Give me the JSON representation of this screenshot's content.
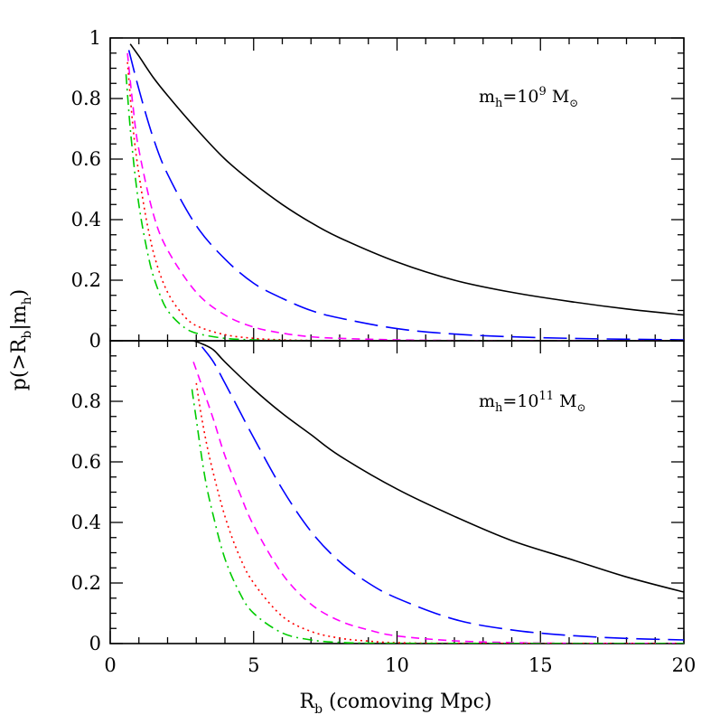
{
  "chart_data": [
    {
      "type": "line",
      "panel": "top",
      "annotation": {
        "prefix": "m",
        "sub": "h",
        "eq": "=10",
        "exp": "9",
        "unit": " M",
        "sun": "⊙"
      },
      "xlim": [
        0,
        20
      ],
      "ylim": [
        0,
        1
      ],
      "xticks": [
        "0",
        "5",
        "10",
        "15",
        "20"
      ],
      "yticks": [
        "0",
        "0.2",
        "0.4",
        "0.6",
        "0.8",
        "1"
      ],
      "ylabel": {
        "main": "p(>R",
        "sub1": "b",
        "mid": "|m",
        "sub2": "h",
        "end": ")"
      },
      "xlabel": {
        "main": "R",
        "sub": "b",
        "rest": " (comoving Mpc)"
      },
      "series": [
        {
          "color": "#000000",
          "dash": "solid",
          "x": [
            0.7,
            1,
            1.5,
            2,
            3,
            4,
            5,
            6,
            7,
            8,
            10,
            12,
            14,
            16,
            18,
            20
          ],
          "y": [
            0.98,
            0.94,
            0.87,
            0.81,
            0.7,
            0.6,
            0.52,
            0.45,
            0.39,
            0.34,
            0.26,
            0.2,
            0.16,
            0.13,
            0.105,
            0.085
          ]
        },
        {
          "color": "#0000ff",
          "dash": "long",
          "x": [
            0.65,
            1,
            1.5,
            2,
            3,
            4,
            5,
            6,
            7,
            8,
            10,
            12,
            14,
            16,
            18,
            20
          ],
          "y": [
            0.96,
            0.83,
            0.67,
            0.55,
            0.38,
            0.27,
            0.19,
            0.14,
            0.1,
            0.075,
            0.04,
            0.022,
            0.013,
            0.008,
            0.005,
            0.003
          ]
        },
        {
          "color": "#ff00ff",
          "dash": "short",
          "x": [
            0.6,
            0.8,
            1,
            1.5,
            2,
            3,
            4,
            5,
            6,
            7,
            8,
            10,
            12,
            15,
            20
          ],
          "y": [
            0.95,
            0.77,
            0.63,
            0.42,
            0.3,
            0.16,
            0.085,
            0.045,
            0.025,
            0.013,
            0.008,
            0.003,
            0.001,
            0.0005,
            0
          ]
        },
        {
          "color": "#ff0000",
          "dash": "dotted",
          "x": [
            0.6,
            0.8,
            1,
            1.3,
            1.6,
            2,
            2.5,
            3,
            4,
            5,
            6,
            7,
            8,
            10,
            20
          ],
          "y": [
            0.92,
            0.7,
            0.55,
            0.38,
            0.26,
            0.16,
            0.09,
            0.05,
            0.02,
            0.008,
            0.003,
            0.001,
            0.0005,
            0,
            0
          ]
        },
        {
          "color": "#00cc00",
          "dash": "dotdash",
          "x": [
            0.55,
            0.7,
            0.9,
            1.1,
            1.4,
            1.7,
            2,
            2.5,
            3,
            4,
            5,
            6,
            8,
            20
          ],
          "y": [
            0.88,
            0.7,
            0.52,
            0.39,
            0.25,
            0.16,
            0.1,
            0.05,
            0.025,
            0.008,
            0.003,
            0.001,
            0,
            0
          ]
        }
      ]
    },
    {
      "type": "line",
      "panel": "bottom",
      "annotation": {
        "prefix": "m",
        "sub": "h",
        "eq": "=10",
        "exp": "11",
        "unit": " M",
        "sun": "⊙"
      },
      "xlim": [
        0,
        20
      ],
      "ylim": [
        0,
        1
      ],
      "xticks": [
        "0",
        "5",
        "10",
        "15",
        "20"
      ],
      "yticks": [
        "0",
        "0.2",
        "0.4",
        "0.6",
        "0.8"
      ],
      "series": [
        {
          "color": "#000000",
          "dash": "solid",
          "x": [
            2.9,
            3.2,
            3.6,
            4,
            5,
            6,
            7,
            8,
            10,
            12,
            14,
            16,
            18,
            20
          ],
          "y": [
            1.0,
            0.99,
            0.97,
            0.93,
            0.84,
            0.76,
            0.69,
            0.62,
            0.51,
            0.42,
            0.34,
            0.28,
            0.22,
            0.17
          ]
        },
        {
          "color": "#0000ff",
          "dash": "long",
          "x": [
            3.2,
            3.6,
            4,
            4.5,
            5,
            6,
            7,
            8,
            9,
            10,
            12,
            14,
            16,
            18,
            20
          ],
          "y": [
            0.98,
            0.93,
            0.86,
            0.77,
            0.68,
            0.51,
            0.37,
            0.27,
            0.2,
            0.15,
            0.08,
            0.045,
            0.027,
            0.017,
            0.012
          ]
        },
        {
          "color": "#ff00ff",
          "dash": "short",
          "x": [
            2.9,
            3.2,
            3.6,
            4,
            4.5,
            5,
            6,
            7,
            8,
            9,
            10,
            12,
            14,
            16,
            20
          ],
          "y": [
            0.93,
            0.85,
            0.74,
            0.62,
            0.5,
            0.39,
            0.23,
            0.13,
            0.075,
            0.045,
            0.025,
            0.009,
            0.003,
            0.001,
            0
          ]
        },
        {
          "color": "#ff0000",
          "dash": "dotted",
          "x": [
            3.0,
            3.2,
            3.5,
            4,
            4.5,
            5,
            6,
            7,
            8,
            9,
            10,
            12,
            20
          ],
          "y": [
            0.86,
            0.74,
            0.6,
            0.42,
            0.29,
            0.2,
            0.09,
            0.04,
            0.018,
            0.008,
            0.003,
            0.001,
            0
          ]
        },
        {
          "color": "#00cc00",
          "dash": "dotdash",
          "x": [
            2.85,
            3.0,
            3.3,
            3.6,
            4,
            4.5,
            5,
            6,
            7,
            8,
            10,
            20
          ],
          "y": [
            0.84,
            0.74,
            0.55,
            0.42,
            0.28,
            0.17,
            0.1,
            0.035,
            0.012,
            0.004,
            0.001,
            0
          ]
        }
      ]
    }
  ]
}
